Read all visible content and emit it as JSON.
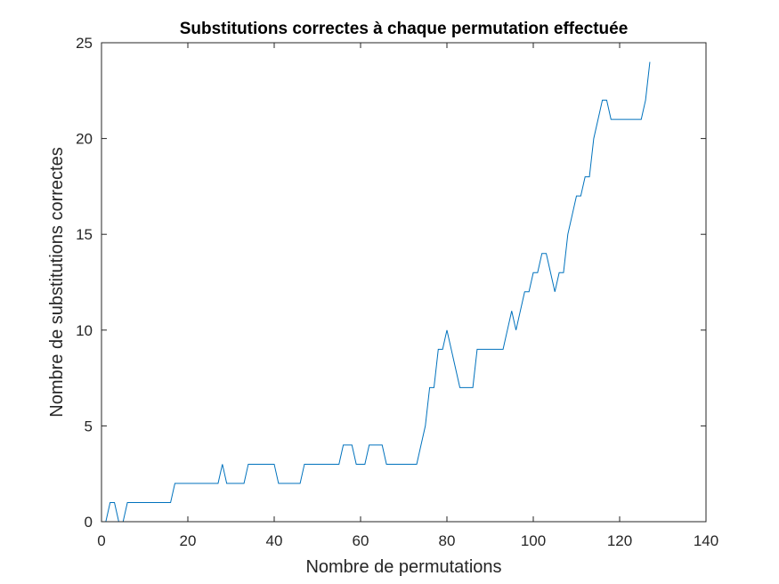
{
  "chart_data": {
    "type": "line",
    "title": "Substitutions correctes à chaque permutation effectuée",
    "xlabel": "Nombre de permutations",
    "ylabel": "Nombre de substitutions correctes",
    "xlim": [
      0,
      140
    ],
    "ylim": [
      0,
      25
    ],
    "xticks": [
      0,
      20,
      40,
      60,
      80,
      100,
      120,
      140
    ],
    "yticks": [
      0,
      5,
      10,
      15,
      20,
      25
    ],
    "grid": false,
    "line_color": "#0072BD",
    "series": [
      {
        "x": [
          1,
          2,
          3,
          4,
          5,
          6,
          7,
          8,
          9,
          10,
          11,
          12,
          13,
          14,
          15,
          16,
          17,
          18,
          19,
          20,
          21,
          22,
          23,
          24,
          25,
          26,
          27,
          28,
          29,
          30,
          31,
          32,
          33,
          34,
          35,
          36,
          37,
          38,
          39,
          40,
          41,
          42,
          43,
          44,
          45,
          46,
          47,
          48,
          49,
          50,
          51,
          52,
          53,
          54,
          55,
          56,
          57,
          58,
          59,
          60,
          61,
          62,
          63,
          64,
          65,
          66,
          67,
          68,
          69,
          70,
          71,
          72,
          73,
          74,
          75,
          76,
          77,
          78,
          79,
          80,
          81,
          82,
          83,
          84,
          85,
          86,
          87,
          88,
          89,
          90,
          91,
          92,
          93,
          94,
          95,
          96,
          97,
          98,
          99,
          100,
          101,
          102,
          103,
          104,
          105,
          106,
          107,
          108,
          109,
          110,
          111,
          112,
          113,
          114,
          115,
          116,
          117,
          118,
          119,
          120,
          121,
          122,
          123,
          124,
          125,
          126,
          127
        ],
        "y": [
          0,
          1,
          1,
          0,
          0,
          1,
          1,
          1,
          1,
          1,
          1,
          1,
          1,
          1,
          1,
          1,
          2,
          2,
          2,
          2,
          2,
          2,
          2,
          2,
          2,
          2,
          2,
          3,
          2,
          2,
          2,
          2,
          2,
          3,
          3,
          3,
          3,
          3,
          3,
          3,
          2,
          2,
          2,
          2,
          2,
          2,
          3,
          3,
          3,
          3,
          3,
          3,
          3,
          3,
          3,
          4,
          4,
          4,
          3,
          3,
          3,
          4,
          4,
          4,
          4,
          3,
          3,
          3,
          3,
          3,
          3,
          3,
          3,
          4,
          5,
          7,
          7,
          9,
          9,
          10,
          9,
          8,
          7,
          7,
          7,
          7,
          9,
          9,
          9,
          9,
          9,
          9,
          9,
          10,
          11,
          10,
          11,
          12,
          12,
          13,
          13,
          14,
          14,
          13,
          12,
          13,
          13,
          15,
          16,
          17,
          17,
          18,
          18,
          20,
          21,
          22,
          22,
          21,
          21,
          21,
          21,
          21,
          21,
          21,
          21,
          22,
          24
        ]
      }
    ]
  }
}
